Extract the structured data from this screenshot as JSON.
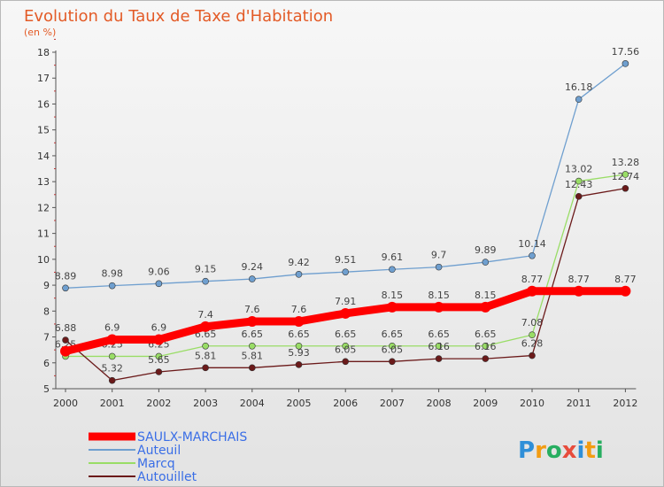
{
  "chart_data": {
    "type": "line",
    "title": "Evolution du Taux de Taxe d'Habitation",
    "unit_label": "(en %)",
    "x": [
      "2000",
      "2001",
      "2002",
      "2003",
      "2004",
      "2005",
      "2006",
      "2007",
      "2008",
      "2009",
      "2010",
      "2011",
      "2012"
    ],
    "ylim": [
      5,
      18
    ],
    "yticks": [
      "5",
      "6",
      "7",
      "8",
      "9",
      "10",
      "11",
      "12",
      "13",
      "14",
      "15",
      "16",
      "17",
      "18"
    ],
    "grid": false,
    "legend_position": "bottom-left",
    "series": [
      {
        "name": "SAULX-MARCHAIS",
        "color": "#ff0000",
        "values": [
          6.45,
          6.9,
          6.9,
          7.4,
          7.6,
          7.6,
          7.91,
          8.15,
          8.15,
          8.15,
          8.77,
          8.77,
          8.77
        ],
        "labels": [
          "",
          "6.9",
          "6.9",
          "7.4",
          "7.6",
          "7.6",
          "7.91",
          "8.15",
          "8.15",
          "8.15",
          "8.77",
          "8.77",
          "8.77"
        ]
      },
      {
        "name": "Auteuil",
        "color": "#6f9fcf",
        "values": [
          8.89,
          8.98,
          9.06,
          9.15,
          9.24,
          9.42,
          9.51,
          9.61,
          9.7,
          9.89,
          10.14,
          16.18,
          17.56
        ],
        "labels": [
          "8.89",
          "8.98",
          "9.06",
          "9.15",
          "9.24",
          "9.42",
          "9.51",
          "9.61",
          "9.7",
          "9.89",
          "10.14",
          "16.18",
          "17.56"
        ]
      },
      {
        "name": "Marcq",
        "color": "#99dd66",
        "values": [
          6.25,
          6.25,
          6.25,
          6.65,
          6.65,
          6.65,
          6.65,
          6.65,
          6.65,
          6.65,
          7.08,
          13.02,
          13.28
        ],
        "labels": [
          "6.25",
          "6.25",
          "6.25",
          "6.65",
          "6.65",
          "6.65",
          "6.65",
          "6.65",
          "6.65",
          "6.65",
          "7.08",
          "13.02",
          "13.28"
        ]
      },
      {
        "name": "Autouillet",
        "color": "#6b1a1a",
        "values": [
          6.88,
          5.32,
          5.65,
          5.81,
          5.81,
          5.93,
          6.05,
          6.05,
          6.16,
          6.16,
          6.28,
          12.43,
          12.74
        ],
        "labels": [
          "6.88",
          "5.32",
          "5.65",
          "5.81",
          "5.81",
          "5.93",
          "6.05",
          "6.05",
          "6.16",
          "6.16",
          "6.28",
          "12.43",
          "12.74"
        ]
      }
    ]
  },
  "logo": {
    "text": "Proxiti",
    "letters": [
      "P",
      "r",
      "o",
      "x",
      "i",
      "t",
      "i"
    ],
    "colors": [
      "#2f8fd8",
      "#f39c12",
      "#27ae60",
      "#e74c3c",
      "#2f8fd8",
      "#f39c12",
      "#27ae60"
    ]
  }
}
